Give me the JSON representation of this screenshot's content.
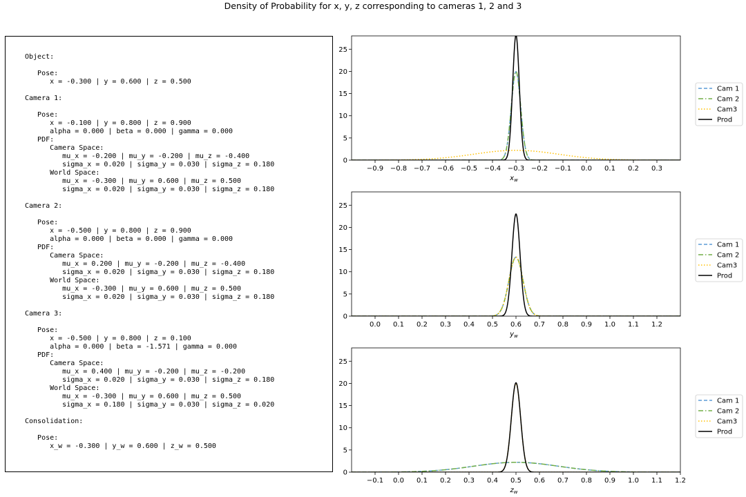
{
  "figure": {
    "title": "Density of Probability for x, y, z corresponding to cameras 1, 2 and 3"
  },
  "info_panel": {
    "text": "Object:\n\n   Pose:\n      x = -0.300 | y = 0.600 | z = 0.500\n\nCamera 1:\n\n   Pose:\n      x = -0.100 | y = 0.800 | z = 0.900\n      alpha = 0.000 | beta = 0.000 | gamma = 0.000\n   PDF:\n      Camera Space:\n         mu_x = -0.200 | mu_y = -0.200 | mu_z = -0.400\n         sigma_x = 0.020 | sigma_y = 0.030 | sigma_z = 0.180\n      World Space:\n         mu_x = -0.300 | mu_y = 0.600 | mu_z = 0.500\n         sigma_x = 0.020 | sigma_y = 0.030 | sigma_z = 0.180\n\nCamera 2:\n\n   Pose:\n      x = -0.500 | y = 0.800 | z = 0.900\n      alpha = 0.000 | beta = 0.000 | gamma = 0.000\n   PDF:\n      Camera Space:\n         mu_x = 0.200 | mu_y = -0.200 | mu_z = -0.400\n         sigma_x = 0.020 | sigma_y = 0.030 | sigma_z = 0.180\n      World Space:\n         mu_x = -0.300 | mu_y = 0.600 | mu_z = 0.500\n         sigma_x = 0.020 | sigma_y = 0.030 | sigma_z = 0.180\n\nCamera 3:\n\n   Pose:\n      x = -0.500 | y = 0.800 | z = 0.100\n      alpha = 0.000 | beta = -1.571 | gamma = 0.000\n   PDF:\n      Camera Space:\n         mu_x = 0.400 | mu_y = -0.200 | mu_z = -0.200\n         sigma_x = 0.020 | sigma_y = 0.030 | sigma_z = 0.180\n      World Space:\n         mu_x = -0.300 | mu_y = 0.600 | mu_z = 0.500\n         sigma_x = 0.180 | sigma_y = 0.030 | sigma_z = 0.020\n\nConsolidation:\n\n   Pose:\n      x_w = -0.300 | y_w = 0.600 | z_w = 0.500"
  },
  "colors": {
    "cam1": "#5b9bd5",
    "cam2": "#70ad47",
    "cam3": "#ffc000",
    "prod": "#000000"
  },
  "chart_data": [
    {
      "type": "line",
      "xlabel": "x",
      "xlabel_sub": "w",
      "xlim": [
        -1.0,
        0.4
      ],
      "ylim": [
        0,
        28
      ],
      "xticks": [
        -0.9,
        -0.8,
        -0.7,
        -0.6,
        -0.5,
        -0.4,
        -0.3,
        -0.2,
        -0.1,
        0.0,
        0.1,
        0.2,
        0.3
      ],
      "yticks": [
        0,
        5,
        10,
        15,
        20,
        25
      ],
      "grid": false,
      "legend": "outside-right",
      "series": [
        {
          "name": "Cam 1",
          "distribution": "gaussian",
          "mu": -0.3,
          "sigma": 0.02,
          "style": "dashed"
        },
        {
          "name": "Cam 2",
          "distribution": "gaussian",
          "mu": -0.3,
          "sigma": 0.02,
          "style": "dashdot"
        },
        {
          "name": "Cam3",
          "distribution": "gaussian",
          "mu": -0.3,
          "sigma": 0.18,
          "style": "dotted"
        },
        {
          "name": "Prod",
          "distribution": "gaussian",
          "mu": -0.3,
          "sigma": 0.01414,
          "style": "solid"
        }
      ]
    },
    {
      "type": "line",
      "xlabel": "y",
      "xlabel_sub": "w",
      "xlim": [
        -0.1,
        1.3
      ],
      "ylim": [
        0,
        28
      ],
      "xticks": [
        0.0,
        0.1,
        0.2,
        0.3,
        0.4,
        0.5,
        0.6,
        0.7,
        0.8,
        0.9,
        1.0,
        1.1,
        1.2
      ],
      "yticks": [
        0,
        5,
        10,
        15,
        20,
        25
      ],
      "grid": false,
      "legend": "outside-right",
      "series": [
        {
          "name": "Cam 1",
          "distribution": "gaussian",
          "mu": 0.6,
          "sigma": 0.03,
          "style": "dashed"
        },
        {
          "name": "Cam 2",
          "distribution": "gaussian",
          "mu": 0.6,
          "sigma": 0.03,
          "style": "dashdot"
        },
        {
          "name": "Cam3",
          "distribution": "gaussian",
          "mu": 0.6,
          "sigma": 0.03,
          "style": "dotted"
        },
        {
          "name": "Prod",
          "distribution": "gaussian",
          "mu": 0.6,
          "sigma": 0.01732,
          "style": "solid"
        }
      ]
    },
    {
      "type": "line",
      "xlabel": "z",
      "xlabel_sub": "w",
      "xlim": [
        -0.2,
        1.2
      ],
      "ylim": [
        0,
        28
      ],
      "xticks": [
        -0.1,
        0.0,
        0.1,
        0.2,
        0.3,
        0.4,
        0.5,
        0.6,
        0.7,
        0.8,
        0.9,
        1.0,
        1.1,
        1.2
      ],
      "yticks": [
        0,
        5,
        10,
        15,
        20,
        25
      ],
      "grid": false,
      "legend": "outside-right",
      "series": [
        {
          "name": "Cam 1",
          "distribution": "gaussian",
          "mu": 0.5,
          "sigma": 0.18,
          "style": "dashed"
        },
        {
          "name": "Cam 2",
          "distribution": "gaussian",
          "mu": 0.5,
          "sigma": 0.18,
          "style": "dashdot"
        },
        {
          "name": "Cam3",
          "distribution": "gaussian",
          "mu": 0.5,
          "sigma": 0.02,
          "style": "dotted"
        },
        {
          "name": "Prod",
          "distribution": "gaussian",
          "mu": 0.5,
          "sigma": 0.0198,
          "style": "solid"
        }
      ]
    }
  ]
}
